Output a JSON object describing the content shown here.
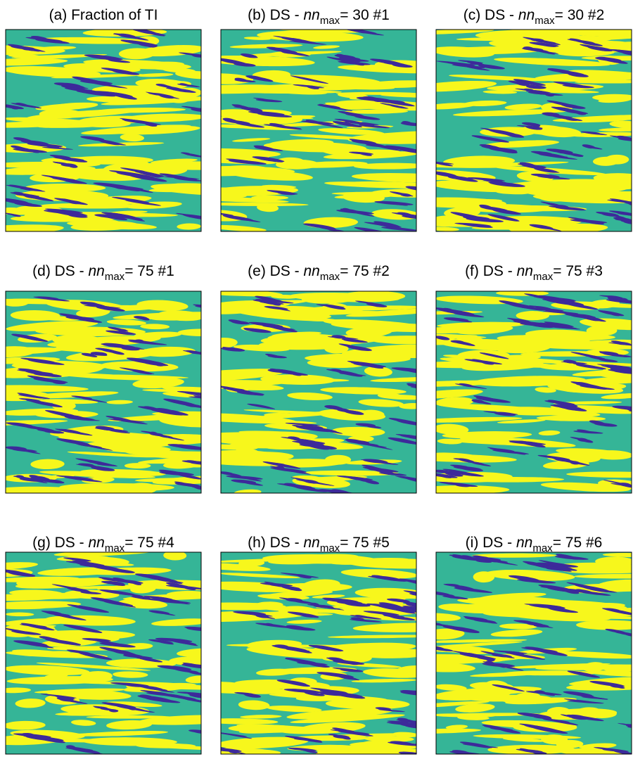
{
  "panels": [
    {
      "title": {
        "prefix": "(a) Fraction of TI"
      }
    },
    {
      "title": {
        "prefix": "(b) DS - ",
        "var": "nn",
        "sub": "max",
        "suffix": "= 30 #1"
      }
    },
    {
      "title": {
        "prefix": "(c) DS - ",
        "var": "nn",
        "sub": "max",
        "suffix": "= 30 #2"
      }
    },
    {
      "title": {
        "prefix": "(d) DS - ",
        "var": "nn",
        "sub": "max",
        "suffix": "= 75 #1"
      }
    },
    {
      "title": {
        "prefix": "(e) DS - ",
        "var": "nn",
        "sub": "max",
        "suffix": "= 75 #2"
      }
    },
    {
      "title": {
        "prefix": "(f) DS - ",
        "var": "nn",
        "sub": "max",
        "suffix": "= 75 #3"
      }
    },
    {
      "title": {
        "prefix": "(g) DS - ",
        "var": "nn",
        "sub": "max",
        "suffix": "= 75 #4"
      }
    },
    {
      "title": {
        "prefix": "(h) DS - ",
        "var": "nn",
        "sub": "max",
        "suffix": "= 75 #5"
      }
    },
    {
      "title": {
        "prefix": "(i) DS - ",
        "var": "nn",
        "sub": "max",
        "suffix": "= 75 #6"
      }
    }
  ]
}
